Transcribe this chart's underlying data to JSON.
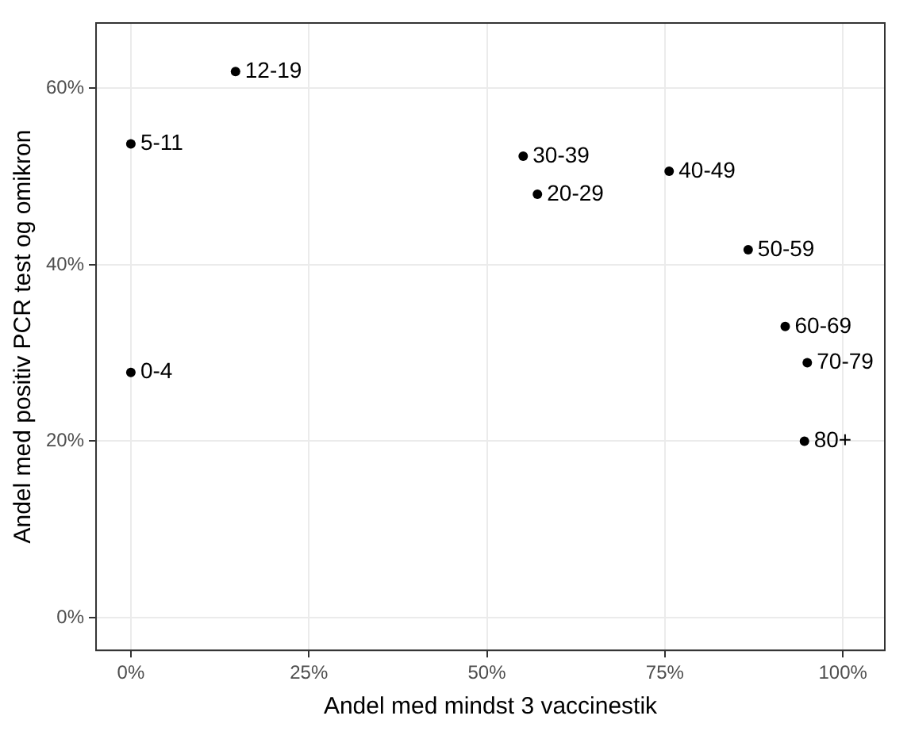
{
  "chart_data": {
    "type": "scatter",
    "xlabel": "Andel med mindst 3 vaccinestik",
    "ylabel": "Andel med positiv PCR test og omikron",
    "x": [
      0,
      0,
      14.7,
      55.1,
      57.1,
      75.6,
      86.7,
      91.9,
      95.0,
      94.6
    ],
    "series": [
      {
        "color": "#000000",
        "values": [
          27.8,
          53.7,
          61.9,
          52.3,
          48.0,
          50.6,
          41.7,
          33.0,
          28.9,
          20.0
        ]
      }
    ],
    "xlim": [
      -5,
      106
    ],
    "ylim": [
      -3.8,
      67.5
    ],
    "xticks": [
      {
        "value": 0,
        "label": "0%"
      },
      {
        "value": 25,
        "label": "25%"
      },
      {
        "value": 50,
        "label": "50%"
      },
      {
        "value": 75,
        "label": "75%"
      },
      {
        "value": 100,
        "label": "100%"
      }
    ],
    "yticks": [
      {
        "value": 0,
        "label": "0%"
      },
      {
        "value": 20,
        "label": "20%"
      },
      {
        "value": 40,
        "label": "40%"
      },
      {
        "value": 60,
        "label": "60%"
      }
    ],
    "annotations": [
      {
        "text": "0-4",
        "x": 0,
        "y": 27.8
      },
      {
        "text": "5-11",
        "x": 0,
        "y": 53.7
      },
      {
        "text": "12-19",
        "x": 14.7,
        "y": 61.9
      },
      {
        "text": "30-39",
        "x": 55.1,
        "y": 52.3
      },
      {
        "text": "20-29",
        "x": 57.1,
        "y": 48.0
      },
      {
        "text": "40-49",
        "x": 75.6,
        "y": 50.6
      },
      {
        "text": "50-59",
        "x": 86.7,
        "y": 41.7
      },
      {
        "text": "60-69",
        "x": 91.9,
        "y": 33.0
      },
      {
        "text": "70-79",
        "x": 95.0,
        "y": 28.9
      },
      {
        "text": "80+",
        "x": 94.6,
        "y": 20.0
      }
    ],
    "grid": true,
    "legend": false,
    "marker": "circle"
  }
}
